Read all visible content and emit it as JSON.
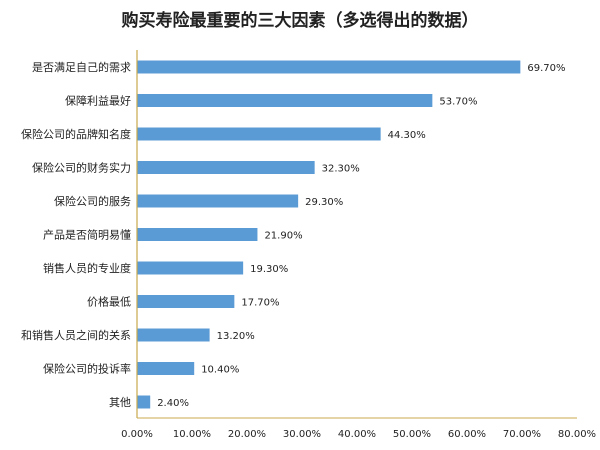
{
  "chart_data": {
    "type": "bar",
    "orientation": "horizontal",
    "title": "购买寿险最重要的三大因素（多选得出的数据）",
    "categories": [
      "是否满足自己的需求",
      "保障利益最好",
      "保险公司的品牌知名度",
      "保险公司的财务实力",
      "保险公司的服务",
      "产品是否简明易懂",
      "销售人员的专业度",
      "价格最低",
      "和销售人员之间的关系",
      "保险公司的投诉率",
      "其他"
    ],
    "values": [
      69.7,
      53.7,
      44.3,
      32.3,
      29.3,
      21.9,
      19.3,
      17.7,
      13.2,
      10.4,
      2.4
    ],
    "value_labels": [
      "69.70%",
      "53.70%",
      "44.30%",
      "32.30%",
      "29.30%",
      "21.90%",
      "19.30%",
      "17.70%",
      "13.20%",
      "10.40%",
      "2.40%"
    ],
    "xlim": [
      0,
      80
    ],
    "x_ticks": [
      0,
      10,
      20,
      30,
      40,
      50,
      60,
      70,
      80
    ],
    "x_tick_labels": [
      "0.00%",
      "10.00%",
      "20.00%",
      "30.00%",
      "40.00%",
      "50.00%",
      "60.00%",
      "70.00%",
      "80.00%"
    ],
    "grid": false,
    "legend": "none",
    "colors": {
      "bar": "#5b9bd5",
      "axis": "#c9a84c",
      "text": "#222222"
    }
  }
}
